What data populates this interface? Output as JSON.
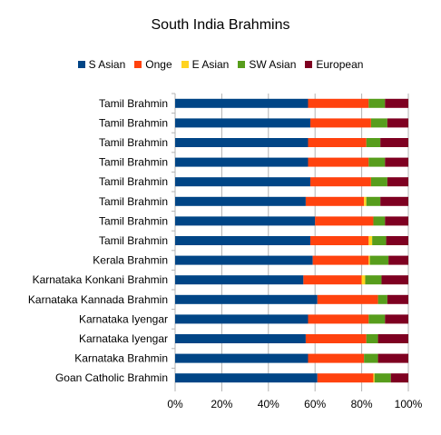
{
  "chart_data": {
    "type": "bar",
    "orientation": "horizontal",
    "stacked": "percent",
    "title": "South India Brahmins",
    "categories": [
      "Tamil Brahmin",
      "Tamil Brahmin",
      "Tamil Brahmin",
      "Tamil Brahmin",
      "Tamil Brahmin",
      "Tamil Brahmin",
      "Tamil Brahmin",
      "Tamil Brahmin",
      "Kerala Brahmin",
      "Karnataka Konkani Brahmin",
      "Karnataka Kannada Brahmin",
      "Karnataka Iyengar",
      "Karnataka Iyengar",
      "Karnataka Brahmin",
      "Goan Catholic Brahmin"
    ],
    "series": [
      {
        "name": "S Asian",
        "color": "#004586",
        "values": [
          57,
          58,
          57,
          57,
          58,
          56,
          60,
          58,
          59,
          55,
          61,
          57,
          56,
          57,
          61
        ]
      },
      {
        "name": "Onge",
        "color": "#ff420e",
        "values": [
          26,
          26,
          25,
          26,
          26,
          25,
          25,
          25,
          24,
          25,
          26,
          26,
          26,
          24,
          24
        ]
      },
      {
        "name": "E Asian",
        "color": "#ffd320",
        "values": [
          0,
          0,
          0,
          0,
          0,
          1,
          0,
          1.5,
          0.5,
          1.5,
          0,
          0,
          0,
          0,
          0.5
        ]
      },
      {
        "name": "SW Asian",
        "color": "#579d1c",
        "values": [
          7,
          7,
          6,
          7,
          7,
          6,
          5,
          6,
          8,
          7,
          4,
          7,
          5,
          6,
          7
        ]
      },
      {
        "name": "European",
        "color": "#7e0021",
        "values": [
          10,
          9,
          12,
          10,
          9,
          12,
          10,
          9.5,
          8.5,
          11.5,
          9,
          10,
          13,
          13,
          7.5
        ]
      }
    ],
    "xlim": [
      0,
      100
    ],
    "x_ticks": [
      "0%",
      "20%",
      "40%",
      "60%",
      "80%",
      "100%"
    ],
    "legend_position": "top",
    "grid": "vertical"
  }
}
